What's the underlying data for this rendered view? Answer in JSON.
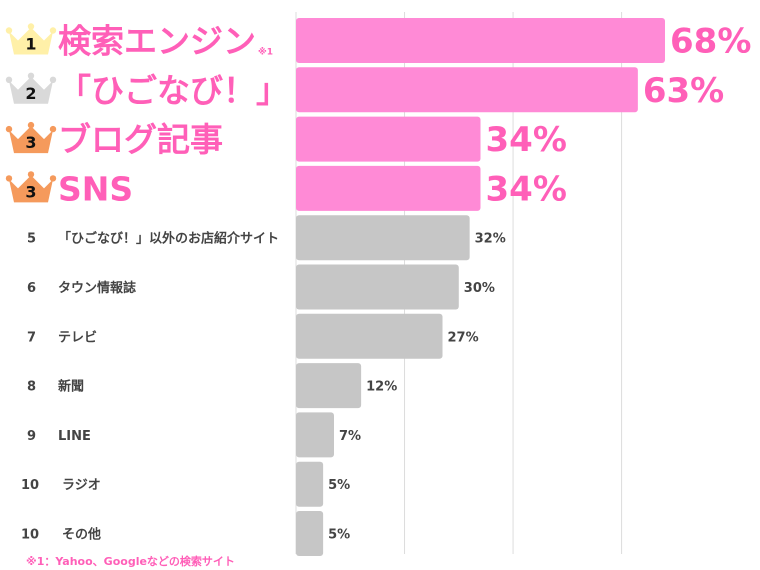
{
  "chart_data": {
    "type": "bar",
    "orientation": "horizontal",
    "unit": "%",
    "xlim": [
      0,
      68
    ],
    "grid": true,
    "categories": [
      {
        "rank": "1",
        "label": "検索エンジン",
        "note": "※1",
        "value": 68,
        "crown": "gold"
      },
      {
        "rank": "2",
        "label": "「ひごなび！」",
        "note": "",
        "value": 63,
        "crown": "silver"
      },
      {
        "rank": "3",
        "label": "ブログ記事",
        "note": "",
        "value": 34,
        "crown": "bronze"
      },
      {
        "rank": "3",
        "label": "SNS",
        "note": "",
        "value": 34,
        "crown": "bronze"
      },
      {
        "rank": "5",
        "label": "「ひごなび！」以外のお店紹介サイト",
        "note": "",
        "value": 32,
        "crown": ""
      },
      {
        "rank": "6",
        "label": "タウン情報誌",
        "note": "",
        "value": 30,
        "crown": ""
      },
      {
        "rank": "7",
        "label": "テレビ",
        "note": "",
        "value": 27,
        "crown": ""
      },
      {
        "rank": "8",
        "label": "新聞",
        "note": "",
        "value": 12,
        "crown": ""
      },
      {
        "rank": "9",
        "label": "LINE",
        "note": "",
        "value": 7,
        "crown": ""
      },
      {
        "rank": "10",
        "label": "ラジオ",
        "note": "",
        "value": 5,
        "crown": ""
      },
      {
        "rank": "10",
        "label": "その他",
        "note": "",
        "value": 5,
        "crown": ""
      }
    ]
  },
  "colors": {
    "highlight": "#ff8ad6",
    "highlight_text": "#ff5fb8",
    "normal": "#c6c6c6",
    "gold": "#fff0a8",
    "silver": "#d9d9d9",
    "bronze": "#f59a5c"
  },
  "footnote": "※1：Yahoo、Googleなどの検索サイト"
}
